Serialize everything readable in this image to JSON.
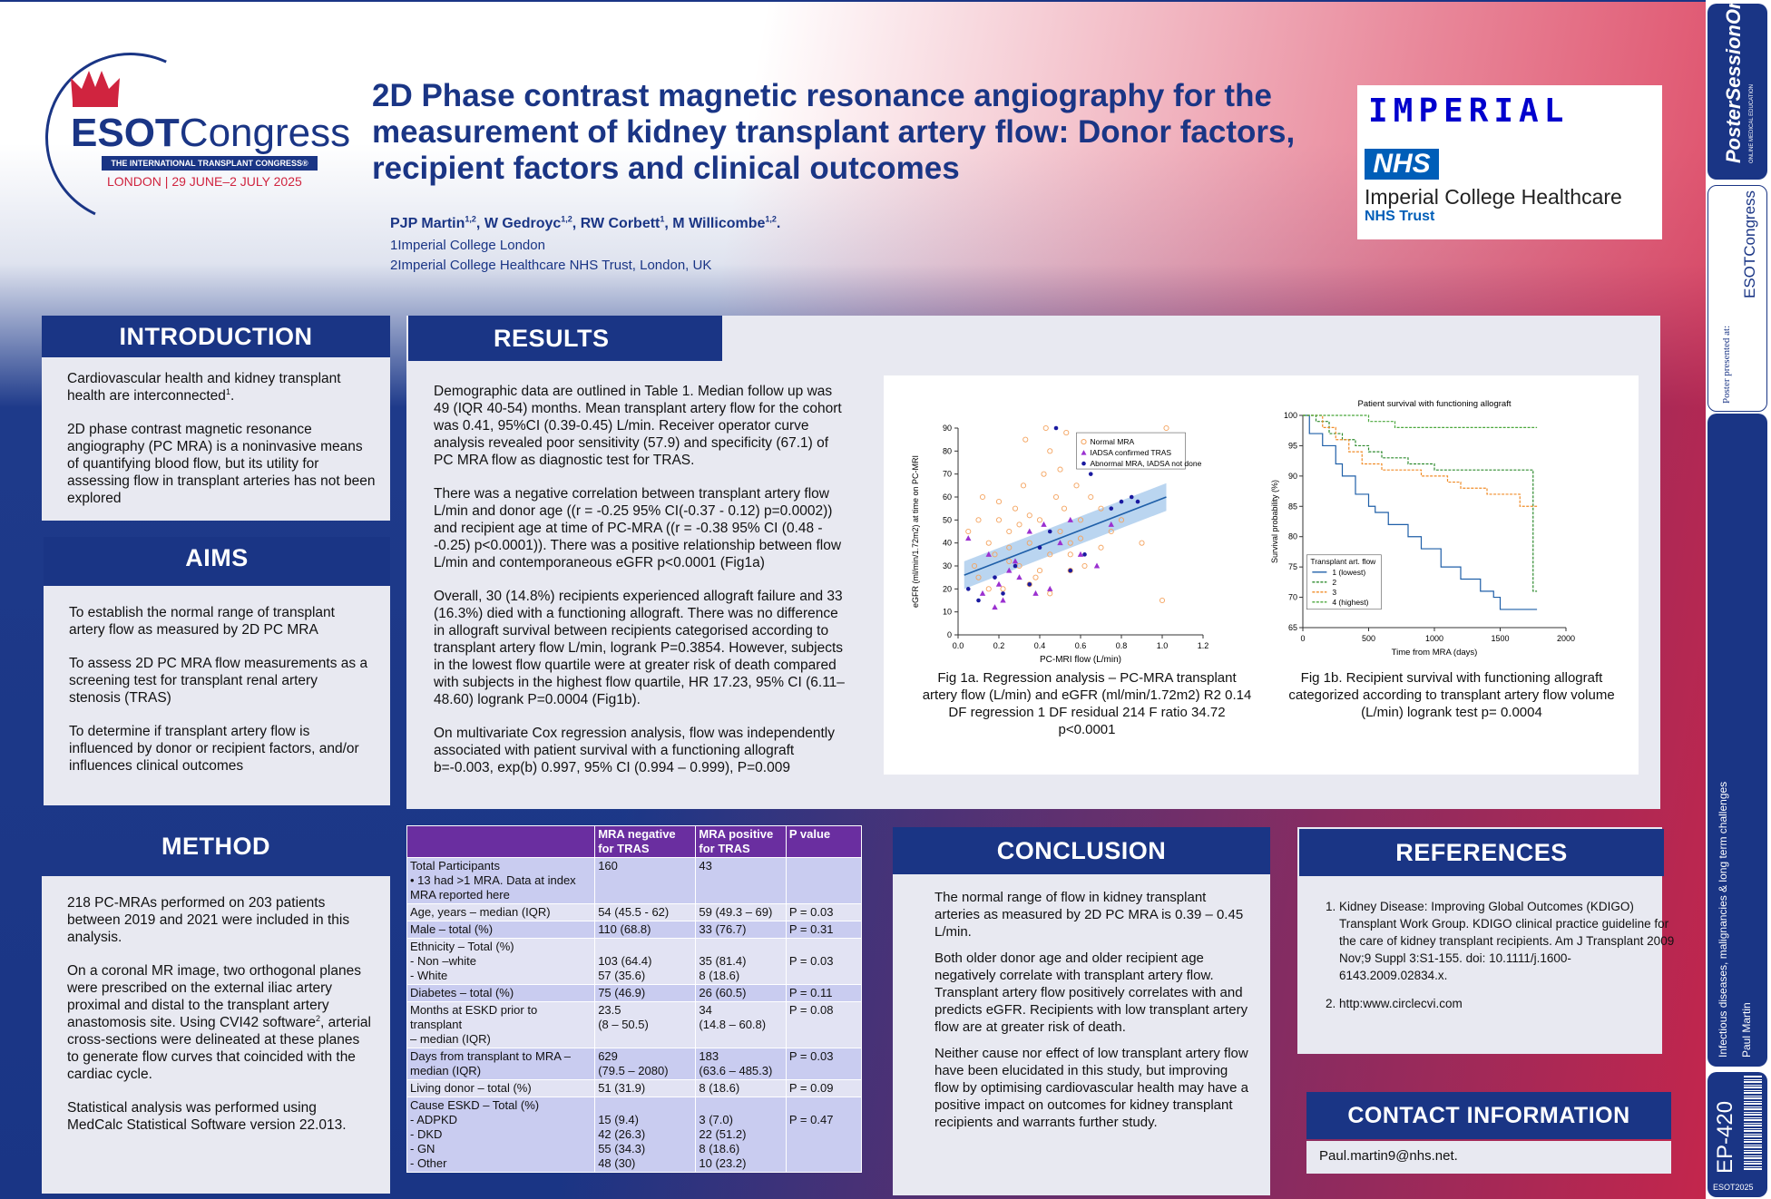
{
  "logo": {
    "brand1": "ESOT",
    "brand2": "Congress",
    "tagline": "THE INTERNATIONAL TRANSPLANT CONGRESS",
    "tagline_mark": "®",
    "location": "LONDON | 29 JUNE–2 JULY 2025"
  },
  "title": "2D Phase contrast magnetic resonance angiography for the measurement of kidney transplant artery flow: Donor factors, recipient factors and clinical outcomes",
  "authors": {
    "line": "PJP Martin, W Gedroyc, RW Corbett, M Willicombe.",
    "names": [
      {
        "name": "PJP Martin",
        "sup": "1,2"
      },
      {
        "name": "W Gedroyc",
        "sup": "1,2"
      },
      {
        "name": "RW Corbett",
        "sup": "1"
      },
      {
        "name": "M Willicombe",
        "sup": "1,2"
      }
    ],
    "aff1": "1Imperial College London",
    "aff2": "2Imperial College Healthcare NHS Trust, London, UK"
  },
  "partner": {
    "imperial": "IMPERIAL",
    "nhs": "NHS",
    "trust": "Imperial College Healthcare",
    "trust_sub": "NHS Trust"
  },
  "intro": {
    "heading": "INTRODUCTION",
    "p1": "Cardiovascular health and kidney transplant health are interconnected",
    "p1_sup": "1",
    "p1_end": ".",
    "p2": "2D phase contrast magnetic resonance angiography (PC MRA) is a noninvasive means of quantifying blood flow, but its utility for assessing flow in transplant arteries has not been explored"
  },
  "aims": {
    "heading": "AIMS",
    "items": [
      "To establish the normal range of transplant artery flow as measured by 2D PC MRA",
      "To assess 2D PC MRA flow measurements as a screening test for transplant renal artery stenosis (TRAS)",
      "To determine if transplant artery flow is influenced by donor or recipient factors, and/or influences clinical outcomes"
    ]
  },
  "method": {
    "heading": "METHOD",
    "p1": "218 PC-MRAs performed on 203 patients between 2019 and 2021 were included in this analysis.",
    "p2a": "On a coronal MR image, two orthogonal planes were prescribed on the external iliac artery proximal and distal to the transplant artery anastomosis site. Using CVI42 software",
    "p2_sup": "2",
    "p2b": ", arterial cross-sections were delineated at these planes to generate flow curves that coincided with the cardiac cycle.",
    "p3": "Statistical analysis was performed using MedCalc Statistical Software version 22.013."
  },
  "results": {
    "heading": "RESULTS",
    "p1": "Demographic data are outlined in Table 1. Median follow up was 49 (IQR 40-54) months. Mean transplant artery flow for the cohort was 0.41, 95%CI (0.39-0.45) L/min. Receiver operator curve analysis revealed poor sensitivity (57.9) and specificity (67.1) of PC MRA flow as diagnostic test for TRAS.",
    "p2": "There was a negative correlation between transplant artery flow L/min and donor age ((r = -0.25 95% CI(-0.37 - 0.12) p=0.0002)) and recipient age at time of PC-MRA ((r = -0.38 95% CI (0.48 - -0.25) p<0.0001)). There was a positive relationship between flow L/min and contemporaneous eGFR p<0.0001 (Fig1a)",
    "p3": "Overall, 30 (14.8%) recipients experienced allograft failure and 33 (16.3%) died with a functioning allograft. There was no difference in allograft survival between recipients categorised according to transplant artery flow L/min, logrank P=0.3854. However, subjects in the lowest flow quartile were at greater risk of death compared with subjects in the highest flow quartile, HR 17.23, 95% CI (6.11–48.60) logrank P=0.0004 (Fig1b).",
    "p4": "On multivariate Cox regression analysis, flow was independently associated with patient survival  with a functioning allograft b=-0.003, exp(b) 0.997, 95% CI (0.994 – 0.999), P=0.009"
  },
  "fig1a": {
    "caption": "Fig 1a. Regression analysis – PC-MRA transplant artery flow (L/min) and eGFR (ml/min/1.72m2) R2 0.14 DF regression 1 DF residual 214 F ratio 34.72 p<0.0001"
  },
  "fig1b": {
    "caption": "Fig 1b. Recipient survival with functioning allograft categorized according to transplant artery flow volume (L/min) logrank test p= 0.0004"
  },
  "chart_data": [
    {
      "type": "scatter",
      "title": "",
      "xlabel": "PC-MRI flow (L/min)",
      "ylabel": "eGFR (ml/min/1.72m2) at time on PC-MRI",
      "xlim": [
        0,
        1.2
      ],
      "ylim": [
        0,
        90
      ],
      "xticks": [
        "0.0",
        "0.2",
        "0.4",
        "0.6",
        "0.8",
        "1.0",
        "1.2"
      ],
      "yticks": [
        "0",
        "10",
        "20",
        "30",
        "40",
        "50",
        "60",
        "70",
        "80",
        "90"
      ],
      "legend": "top-right",
      "grid": false,
      "series": [
        {
          "name": "Normal MRA",
          "marker": "open-circle",
          "color": "#f4a460",
          "x": [
            0.05,
            0.08,
            0.1,
            0.12,
            0.15,
            0.18,
            0.2,
            0.22,
            0.25,
            0.28,
            0.3,
            0.32,
            0.35,
            0.38,
            0.4,
            0.42,
            0.45,
            0.48,
            0.5,
            0.52,
            0.55,
            0.58,
            0.6,
            0.62,
            0.65,
            0.7,
            0.75,
            0.8,
            0.9,
            1.0,
            0.15,
            0.25,
            0.35,
            0.45,
            0.55,
            0.3,
            0.4,
            0.5,
            0.2,
            0.6,
            0.7,
            0.35,
            0.45,
            0.55,
            0.25,
            0.1,
            0.33,
            0.43,
            0.53,
            1.02
          ],
          "y": [
            45,
            30,
            25,
            60,
            40,
            35,
            50,
            20,
            45,
            55,
            30,
            65,
            40,
            25,
            50,
            70,
            35,
            60,
            45,
            55,
            40,
            65,
            50,
            30,
            60,
            55,
            45,
            50,
            40,
            15,
            20,
            38,
            22,
            80,
            35,
            48,
            28,
            72,
            58,
            42,
            38,
            52,
            18,
            28,
            32,
            50,
            85,
            90,
            88,
            90
          ]
        },
        {
          "name": "IADSA confirmed TRAS",
          "marker": "triangle",
          "color": "#9b30d0",
          "x": [
            0.05,
            0.12,
            0.15,
            0.2,
            0.22,
            0.25,
            0.3,
            0.35,
            0.38,
            0.42,
            0.45,
            0.5,
            0.55,
            0.6,
            0.68,
            0.75,
            0.18,
            0.28
          ],
          "y": [
            42,
            18,
            35,
            22,
            15,
            28,
            25,
            45,
            18,
            48,
            20,
            40,
            50,
            35,
            30,
            48,
            12,
            32
          ]
        },
        {
          "name": "Abnormal MRA, IADSA not done",
          "marker": "dot",
          "color": "#1a1aa0",
          "x": [
            0.05,
            0.1,
            0.18,
            0.22,
            0.28,
            0.35,
            0.4,
            0.45,
            0.55,
            0.62,
            0.65,
            0.75,
            0.8,
            0.85,
            0.88,
            0.48
          ],
          "y": [
            20,
            15,
            25,
            18,
            30,
            22,
            38,
            45,
            28,
            35,
            70,
            55,
            58,
            60,
            58,
            90
          ]
        }
      ],
      "regression": {
        "x": [
          0.03,
          1.02
        ],
        "y": [
          26,
          60
        ]
      }
    },
    {
      "type": "line",
      "title": "Patient survival with functioning allograft",
      "xlabel": "Time from MRA (days)",
      "ylabel": "Survival probability (%)",
      "xlim": [
        0,
        2000
      ],
      "ylim": [
        65,
        100
      ],
      "xticks": [
        "0",
        "500",
        "1000",
        "1500",
        "2000"
      ],
      "yticks": [
        "65",
        "70",
        "75",
        "80",
        "85",
        "90",
        "95",
        "100"
      ],
      "legend": "bottom-left",
      "legend_title": "Transplant art. flow",
      "grid": false,
      "series": [
        {
          "name": "1 (lowest)",
          "color": "#1f5fa8",
          "x": [
            0,
            50,
            150,
            250,
            300,
            400,
            500,
            550,
            650,
            800,
            900,
            1050,
            1200,
            1350,
            1450,
            1500,
            1780
          ],
          "y": [
            100,
            97,
            95,
            92,
            90,
            87,
            85,
            84,
            82,
            80,
            78,
            75,
            73,
            71,
            70,
            68,
            68
          ]
        },
        {
          "name": "2",
          "color": "#2e8b2e",
          "x": [
            0,
            100,
            200,
            300,
            400,
            500,
            600,
            800,
            1000,
            1200,
            1400,
            1700,
            1750,
            1780
          ],
          "y": [
            100,
            99,
            97,
            96,
            95,
            94,
            93,
            92,
            91,
            91,
            91,
            91,
            71,
            71
          ]
        },
        {
          "name": "3",
          "color": "#f08c28",
          "x": [
            0,
            150,
            250,
            350,
            450,
            600,
            900,
            1100,
            1200,
            1400,
            1650,
            1780
          ],
          "y": [
            100,
            98,
            96,
            94,
            92,
            91,
            90,
            89,
            88,
            87,
            85,
            85
          ]
        },
        {
          "name": "4 (highest)",
          "color": "#4ba83c",
          "x": [
            0,
            500,
            700,
            1000,
            1780
          ],
          "y": [
            100,
            99,
            98,
            98,
            98
          ]
        }
      ]
    }
  ],
  "table": {
    "headers": [
      "",
      "MRA negative for TRAS",
      "MRA positive for TRAS",
      "P value"
    ],
    "rows": [
      {
        "c0": "Total Participants\n•  13  had >1 MRA. Data at index\n    MRA reported here",
        "c1": "160",
        "c2": "43",
        "c3": ""
      },
      {
        "c0": " Age, years – median (IQR)",
        "c1": "54 (45.5 - 62)",
        "c2": "59 (49.3 – 69)",
        "c3": "P = 0.03"
      },
      {
        "c0": "Male – total (%)",
        "c1": "110 (68.8)",
        "c2": "33 (76.7)",
        "c3": "P = 0.31"
      },
      {
        "c0": "Ethnicity – Total (%)\n-  Non –white\n-  White",
        "c1": "\n103 (64.4)\n57 (35.6)",
        "c2": "\n35 (81.4)\n8 (18.6)",
        "c3": "\nP = 0.03"
      },
      {
        "c0": "Diabetes – total (%)",
        "c1": "75 (46.9)",
        "c2": "26 (60.5)",
        "c3": "P = 0.11"
      },
      {
        "c0": "Months at ESKD prior to transplant\n– median (IQR)",
        "c1": "23.5\n(8 – 50.5)",
        "c2": "34\n(14.8 – 60.8)",
        "c3": "P = 0.08"
      },
      {
        "c0": "Days from transplant to MRA –\nmedian (IQR)",
        "c1": "629\n(79.5 – 2080)",
        "c2": "183\n(63.6 – 485.3)",
        "c3": "P = 0.03"
      },
      {
        "c0": "Living donor – total (%)",
        "c1": "51 (31.9)",
        "c2": "8 (18.6)",
        "c3": "P = 0.09"
      },
      {
        "c0": "Cause ESKD – Total (%)\n-  ADPKD\n-  DKD\n-  GN\n-  Other",
        "c1": "\n15 (9.4)\n42 (26.3)\n55 (34.3)\n48 (30)",
        "c2": "\n3 (7.0)\n22 (51.2)\n8 (18.6)\n10 (23.2)",
        "c3": "\nP = 0.47"
      }
    ]
  },
  "conclusion": {
    "heading": "CONCLUSION",
    "p1": "The normal range of flow in kidney transplant arteries as measured by 2D PC MRA  is 0.39 – 0.45 L/min.",
    "p2": "Both older donor age and older recipient age negatively correlate with transplant artery flow. Transplant artery flow positively correlates with and predicts eGFR. Recipients with low transplant artery flow are at greater risk of death.",
    "p3": "Neither cause nor effect of low transplant artery flow have been elucidated in this study, but improving flow by optimising cardiovascular health may have a positive impact on outcomes for kidney transplant recipients and warrants further study."
  },
  "references": {
    "heading": "REFERENCES",
    "items": [
      "Kidney Disease: Improving Global Outcomes (KDIGO) Transplant Work Group. KDIGO clinical practice guideline for the care of kidney transplant recipients. Am J Transplant 2009 Nov;9 Suppl 3:S1-155. doi: 10.1111/j.1600-6143.2009.02834.x.",
      "http:www.circlecvi.com"
    ]
  },
  "contact": {
    "heading": "CONTACT INFORMATION",
    "email": "Paul.martin9@nhs.net."
  },
  "sidebar": {
    "pso1": "Poster",
    "pso2": "SessionOnline",
    "pso_small": "ONLINE MEDICAL EDUCATION",
    "presented": "Poster presented at:",
    "esot": "ESOTCongress",
    "topic": "Infectious diseases, malignancies & long term challenges",
    "author": "Paul Martin",
    "code": "EP-420",
    "year": "ESOT2025"
  },
  "colors": {
    "navy": "#1a3585",
    "purple": "#6a2ea0",
    "red": "#d0243f"
  }
}
